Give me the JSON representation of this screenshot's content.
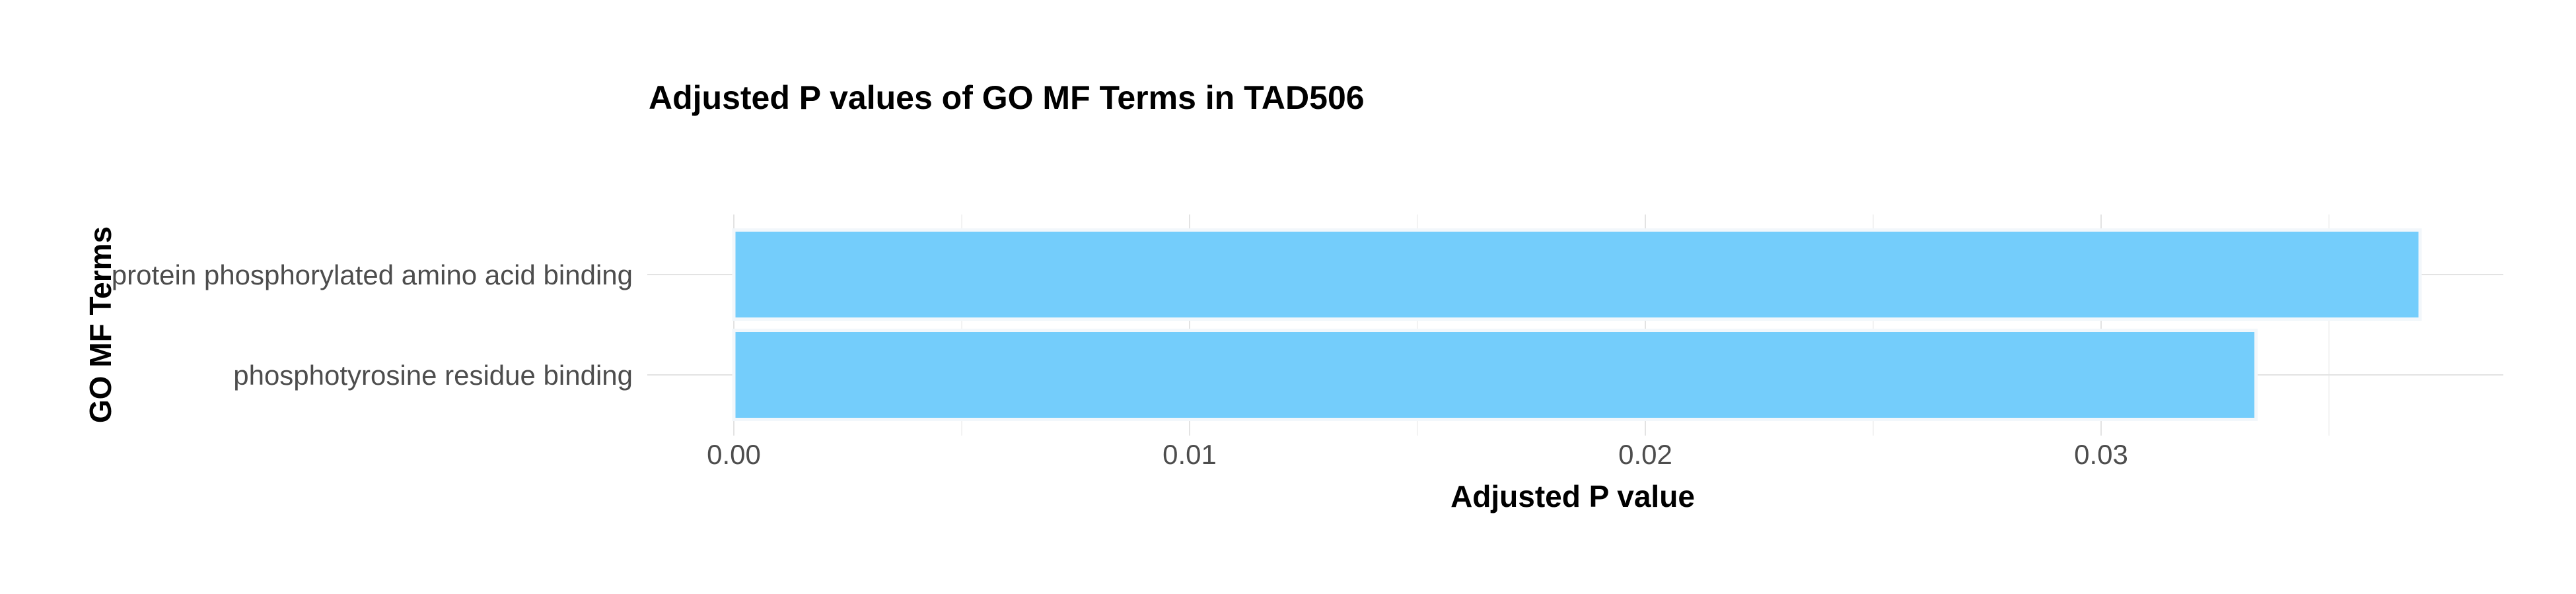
{
  "chart_data": {
    "type": "bar",
    "orientation": "horizontal",
    "title": "Adjusted P values of GO MF Terms in TAD506",
    "xlabel": "Adjusted P value",
    "ylabel": "GO MF Terms",
    "categories": [
      "protein phosphorylated amino acid binding",
      "phosphotyrosine residue binding"
    ],
    "values": [
      0.037,
      0.0334
    ],
    "xlim": [
      0,
      0.0385
    ],
    "xticks": [
      0.0,
      0.01,
      0.02,
      0.03
    ],
    "xtick_labels": [
      "0.00",
      "0.01",
      "0.02",
      "0.03"
    ],
    "grid": true,
    "bar_color": "#74cdfb",
    "legend": "none"
  }
}
